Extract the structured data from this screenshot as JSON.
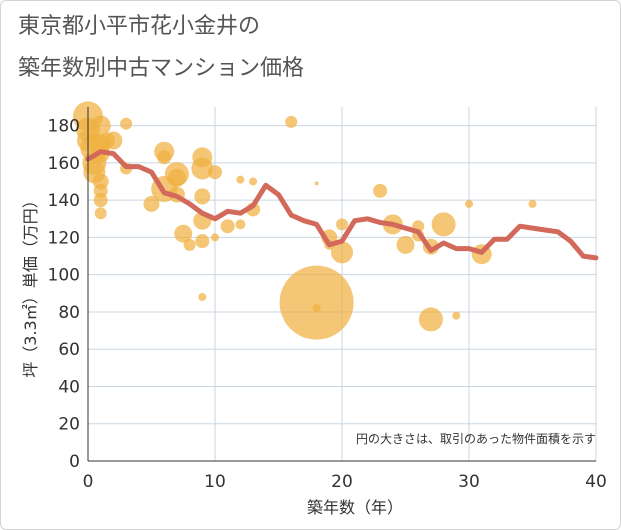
{
  "title_lines": [
    "東京都小平市花小金井の",
    "築年数別中古マンション価格"
  ],
  "chart_data": {
    "type": "scatter",
    "xlabel": "築年数（年）",
    "ylabel": "坪（3.3㎡）単価（万円）",
    "xlim": [
      0,
      40
    ],
    "ylim": [
      0,
      190
    ],
    "xticks": [
      0,
      10,
      20,
      30,
      40
    ],
    "yticks": [
      0,
      20,
      40,
      60,
      80,
      100,
      120,
      140,
      160,
      180
    ],
    "grid": true,
    "note": "円の大きさは、取引のあった物件面積を示す",
    "colors": {
      "bubble": "#f0b040",
      "line": "#d2695a",
      "grid": "#c8d6e0"
    },
    "bubbles": [
      {
        "x": 0,
        "y": 185,
        "s": 15
      },
      {
        "x": 0,
        "y": 178,
        "s": 12
      },
      {
        "x": 0,
        "y": 172,
        "s": 11
      },
      {
        "x": 0.5,
        "y": 168,
        "s": 14
      },
      {
        "x": 0.5,
        "y": 160,
        "s": 12
      },
      {
        "x": 0.5,
        "y": 155,
        "s": 11
      },
      {
        "x": 1,
        "y": 180,
        "s": 10
      },
      {
        "x": 1,
        "y": 170,
        "s": 10
      },
      {
        "x": 1,
        "y": 165,
        "s": 9
      },
      {
        "x": 1,
        "y": 150,
        "s": 8
      },
      {
        "x": 1,
        "y": 145,
        "s": 7
      },
      {
        "x": 1,
        "y": 140,
        "s": 7
      },
      {
        "x": 1,
        "y": 133,
        "s": 6
      },
      {
        "x": 1.5,
        "y": 172,
        "s": 8
      },
      {
        "x": 2,
        "y": 172,
        "s": 9
      },
      {
        "x": 3,
        "y": 181,
        "s": 6
      },
      {
        "x": 3,
        "y": 157,
        "s": 6
      },
      {
        "x": 5,
        "y": 138,
        "s": 8
      },
      {
        "x": 6,
        "y": 166,
        "s": 10
      },
      {
        "x": 6,
        "y": 146,
        "s": 13
      },
      {
        "x": 6,
        "y": 163,
        "s": 7
      },
      {
        "x": 7,
        "y": 154,
        "s": 12
      },
      {
        "x": 7,
        "y": 152,
        "s": 9
      },
      {
        "x": 7,
        "y": 143,
        "s": 8
      },
      {
        "x": 7.5,
        "y": 122,
        "s": 9
      },
      {
        "x": 8,
        "y": 116,
        "s": 6
      },
      {
        "x": 9,
        "y": 163,
        "s": 10
      },
      {
        "x": 9,
        "y": 157,
        "s": 11
      },
      {
        "x": 9,
        "y": 142,
        "s": 8
      },
      {
        "x": 9,
        "y": 129,
        "s": 9
      },
      {
        "x": 9,
        "y": 118,
        "s": 7
      },
      {
        "x": 9,
        "y": 88,
        "s": 4
      },
      {
        "x": 10,
        "y": 155,
        "s": 7
      },
      {
        "x": 10,
        "y": 120,
        "s": 4
      },
      {
        "x": 11,
        "y": 126,
        "s": 7
      },
      {
        "x": 12,
        "y": 151,
        "s": 4
      },
      {
        "x": 12,
        "y": 127,
        "s": 5
      },
      {
        "x": 13,
        "y": 150,
        "s": 4
      },
      {
        "x": 13,
        "y": 135,
        "s": 7
      },
      {
        "x": 16,
        "y": 182,
        "s": 6
      },
      {
        "x": 18,
        "y": 149,
        "s": 2
      },
      {
        "x": 18,
        "y": 85,
        "s": 37
      },
      {
        "x": 18,
        "y": 82,
        "s": 4
      },
      {
        "x": 19,
        "y": 120,
        "s": 8
      },
      {
        "x": 19,
        "y": 116,
        "s": 5
      },
      {
        "x": 20,
        "y": 127,
        "s": 6
      },
      {
        "x": 20,
        "y": 112,
        "s": 11
      },
      {
        "x": 23,
        "y": 145,
        "s": 7
      },
      {
        "x": 24,
        "y": 127,
        "s": 10
      },
      {
        "x": 25,
        "y": 116,
        "s": 9
      },
      {
        "x": 26,
        "y": 126,
        "s": 6
      },
      {
        "x": 26,
        "y": 121,
        "s": 6
      },
      {
        "x": 27,
        "y": 115,
        "s": 8
      },
      {
        "x": 27,
        "y": 76,
        "s": 12
      },
      {
        "x": 28,
        "y": 127,
        "s": 12
      },
      {
        "x": 29,
        "y": 78,
        "s": 4
      },
      {
        "x": 30,
        "y": 138,
        "s": 4
      },
      {
        "x": 31,
        "y": 111,
        "s": 10
      },
      {
        "x": 35,
        "y": 138,
        "s": 4
      }
    ],
    "trend": {
      "x": [
        0,
        1,
        2,
        3,
        4,
        5,
        6,
        7,
        8,
        9,
        10,
        11,
        12,
        13,
        14,
        15,
        16,
        17,
        18,
        19,
        20,
        21,
        22,
        23,
        24,
        25,
        26,
        27,
        28,
        29,
        30,
        31,
        32,
        33,
        34,
        35,
        36,
        37,
        38,
        39,
        40
      ],
      "y": [
        162,
        166,
        165,
        158,
        158,
        155,
        144,
        142,
        138,
        133,
        130,
        134,
        133,
        137,
        148,
        143,
        132,
        129,
        127,
        116,
        118,
        129,
        130,
        128,
        127,
        125,
        123,
        113,
        117,
        114,
        114,
        112,
        119,
        119,
        126,
        125,
        124,
        123,
        118,
        110,
        109
      ]
    }
  }
}
